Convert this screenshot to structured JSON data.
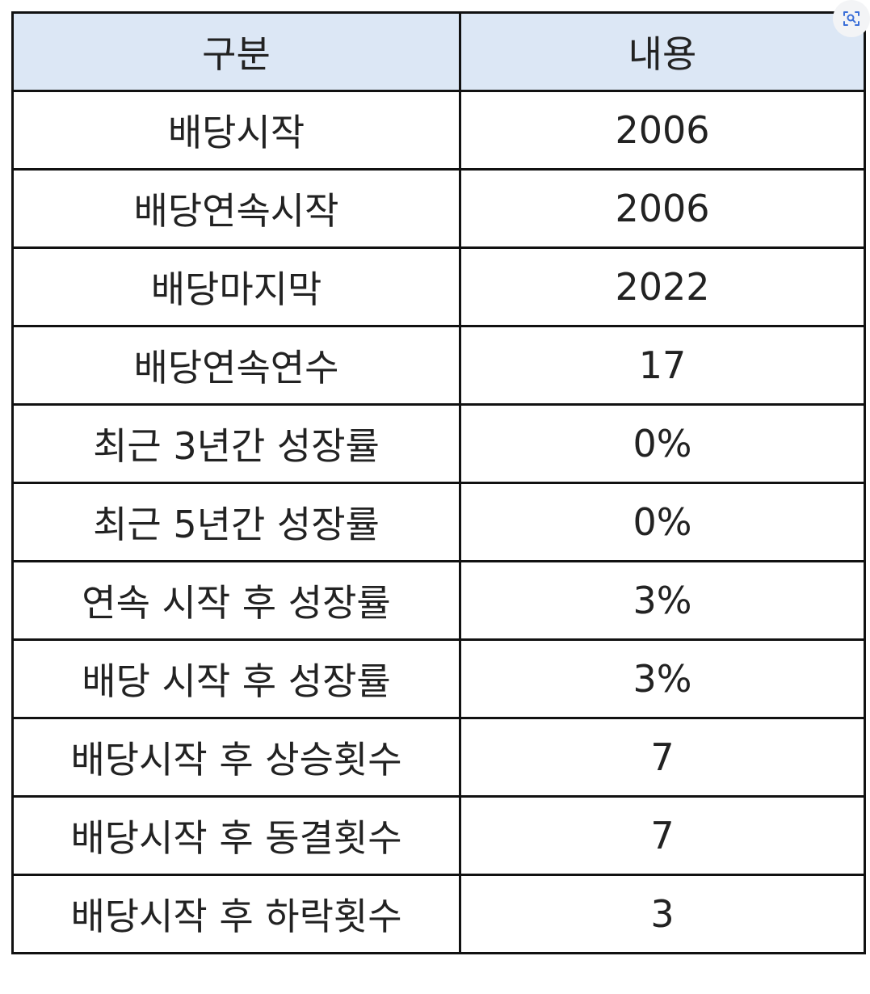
{
  "table": {
    "headers": [
      "구분",
      "내용"
    ],
    "rows": [
      [
        "배당시작",
        "2006"
      ],
      [
        "배당연속시작",
        "2006"
      ],
      [
        "배당마지막",
        "2022"
      ],
      [
        "배당연속연수",
        "17"
      ],
      [
        "최근 3년간 성장률",
        "0%"
      ],
      [
        "최근 5년간 성장률",
        "0%"
      ],
      [
        "연속 시작 후 성장률",
        "3%"
      ],
      [
        "배당 시작 후 성장률",
        "3%"
      ],
      [
        "배당시작 후 상승횟수",
        "7"
      ],
      [
        "배당시작 후 동결횟수",
        "7"
      ],
      [
        "배당시작 후 하락횟수",
        "3"
      ]
    ]
  },
  "colors": {
    "header_bg": "#dce7f5",
    "border": "#111111",
    "text": "#222222"
  },
  "icons": {
    "corner": "image-search-icon"
  }
}
